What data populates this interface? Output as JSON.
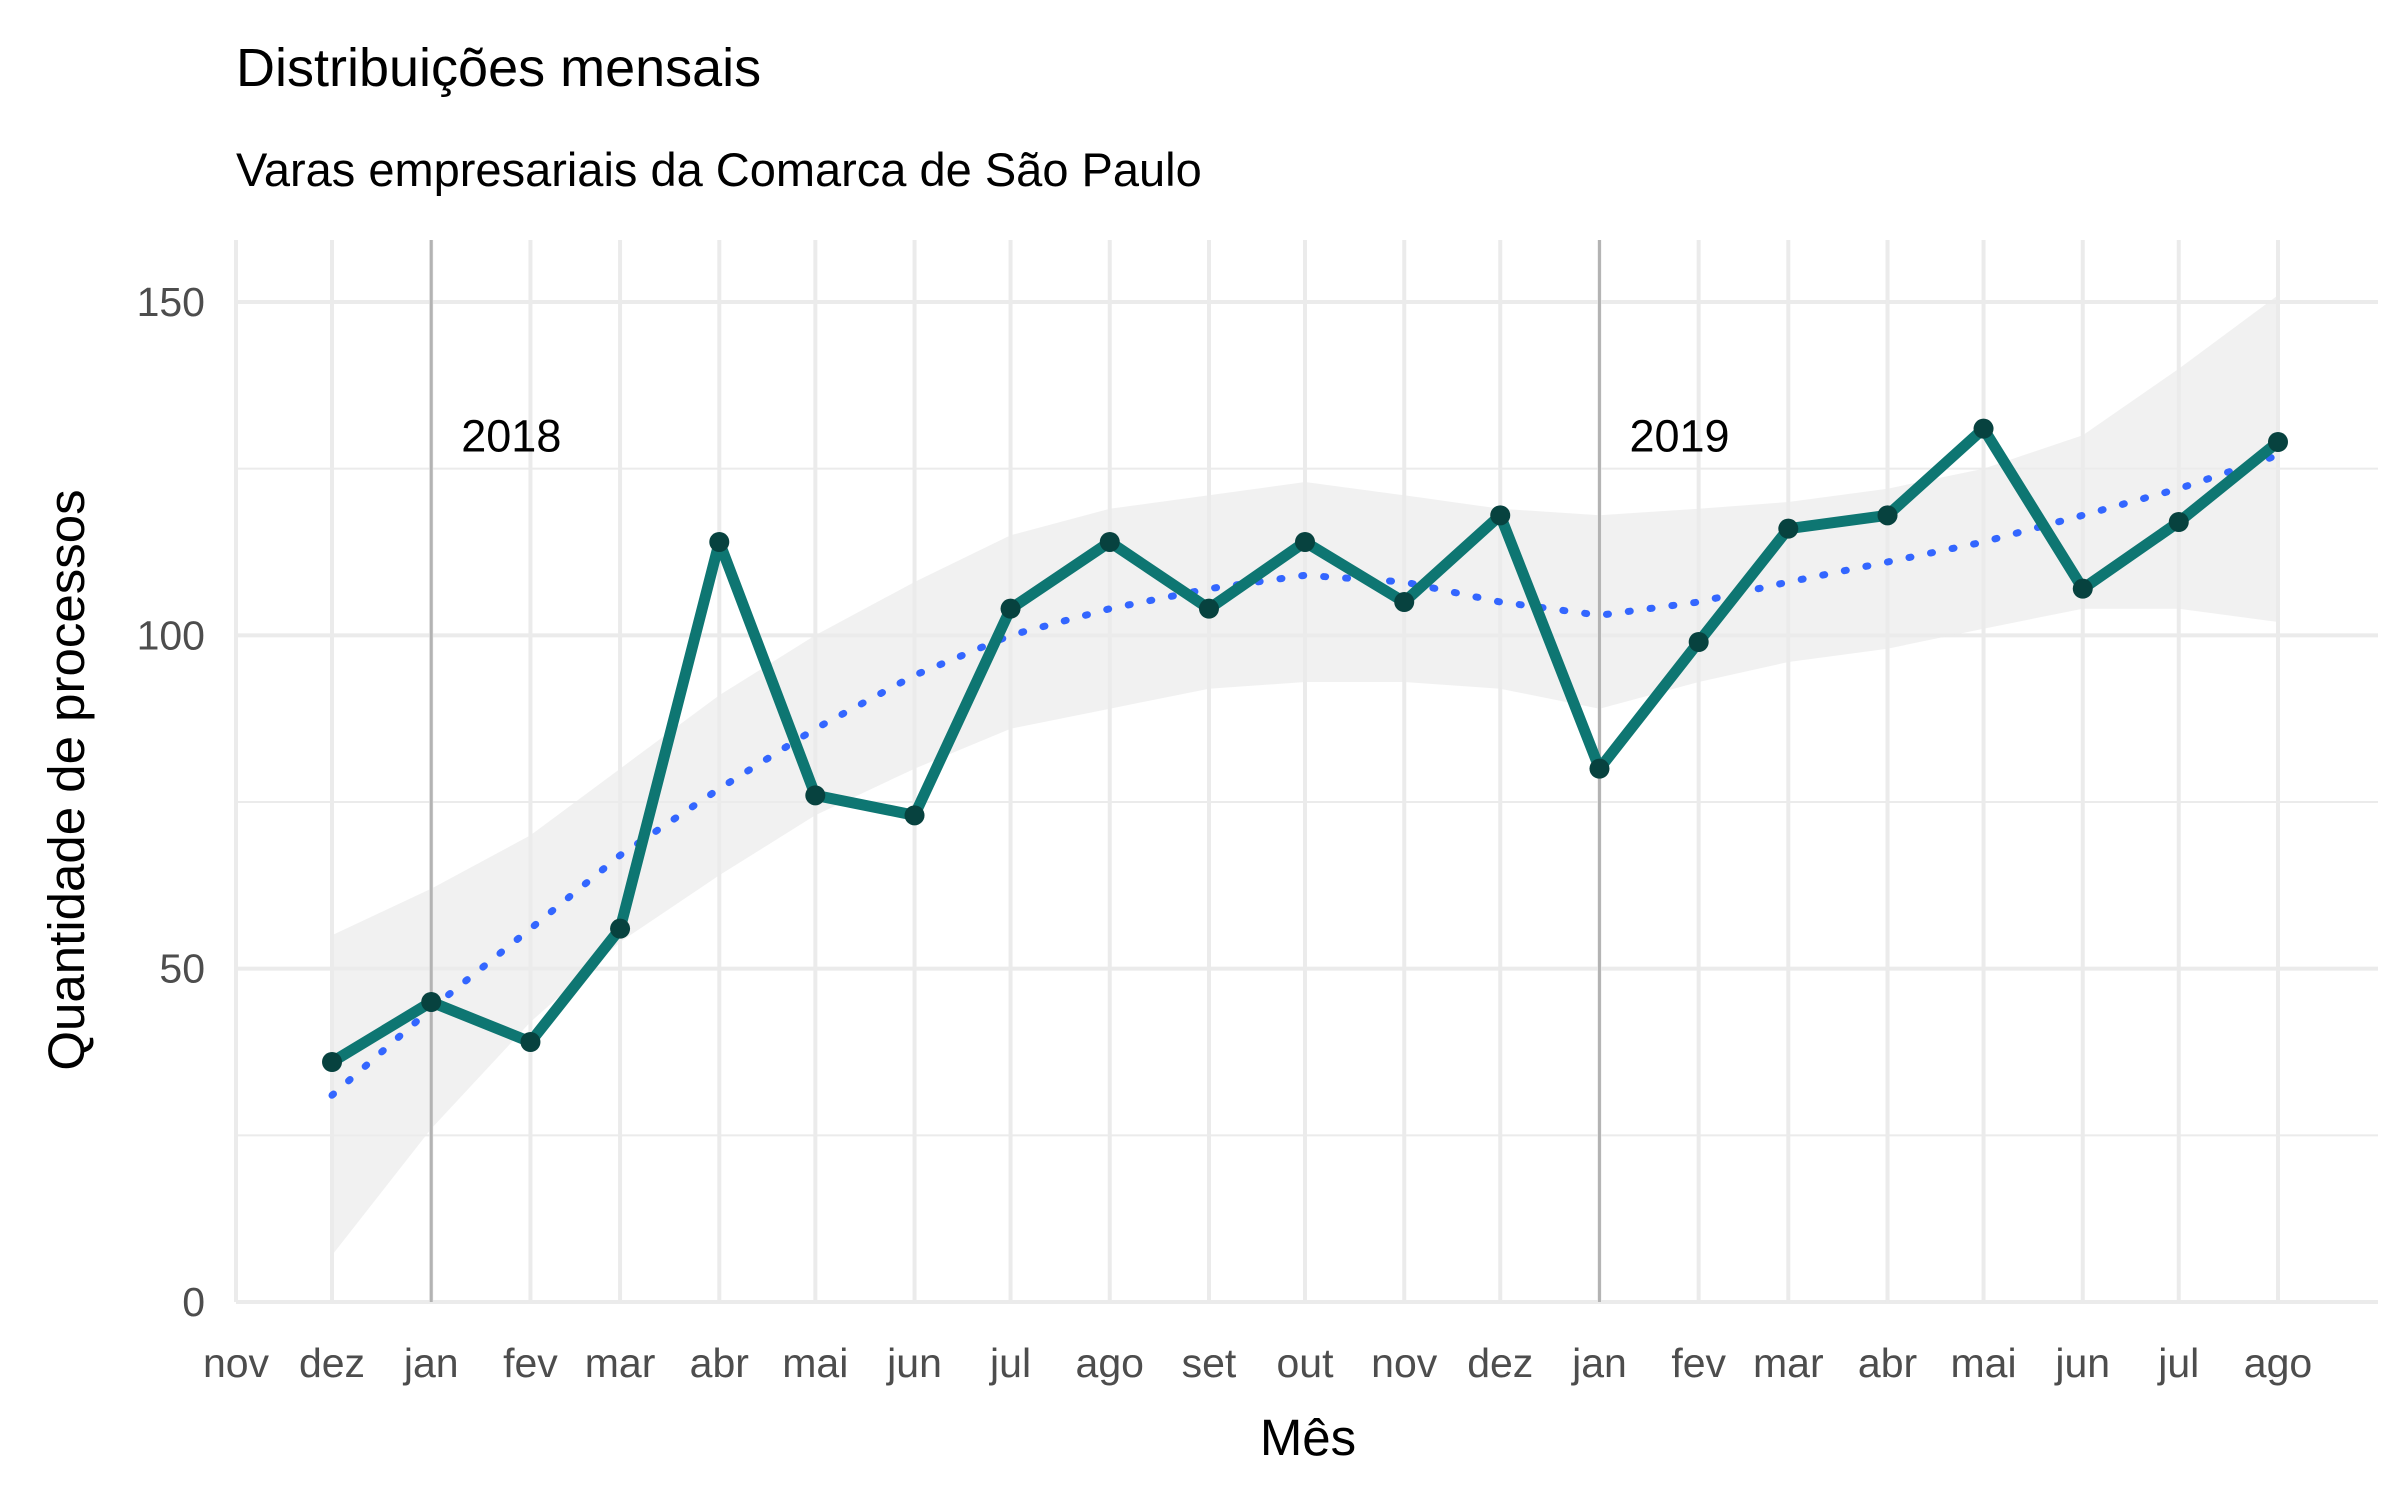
{
  "chart_data": {
    "type": "line",
    "title": "Distribuições mensais",
    "subtitle": "Varas empresariais da Comarca de São Paulo",
    "xlabel": "Mês",
    "ylabel": "Quantidade de processos",
    "x_ticks": [
      "nov",
      "dez",
      "jan",
      "fev",
      "mar",
      "abr",
      "mai",
      "jun",
      "jul",
      "ago",
      "set",
      "out",
      "nov",
      "dez",
      "jan",
      "fev",
      "mar",
      "abr",
      "mai",
      "jun",
      "jul",
      "ago"
    ],
    "x_tick_dates": [
      "2017-11-01",
      "2017-12-01",
      "2018-01-01",
      "2018-02-01",
      "2018-03-01",
      "2018-04-01",
      "2018-05-01",
      "2018-06-01",
      "2018-07-01",
      "2018-08-01",
      "2018-09-01",
      "2018-10-01",
      "2018-11-01",
      "2018-12-01",
      "2019-01-01",
      "2019-02-01",
      "2019-03-01",
      "2019-04-01",
      "2019-05-01",
      "2019-06-01",
      "2019-07-01",
      "2019-08-01"
    ],
    "y_ticks": [
      0,
      50,
      100,
      150
    ],
    "ylim": [
      0,
      160
    ],
    "grid": true,
    "series": [
      {
        "x": [
          "2017-12-01",
          "2018-01-01",
          "2018-02-01",
          "2018-03-01",
          "2018-04-01",
          "2018-05-01",
          "2018-06-01",
          "2018-07-01",
          "2018-08-01",
          "2018-09-01",
          "2018-10-01",
          "2018-11-01",
          "2018-12-01",
          "2019-01-01",
          "2019-02-01",
          "2019-03-01",
          "2019-04-01",
          "2019-05-01",
          "2019-06-01",
          "2019-07-01",
          "2019-08-01"
        ],
        "values": [
          36,
          45,
          39,
          56,
          114,
          76,
          73,
          104,
          114,
          104,
          114,
          105,
          118,
          80,
          99,
          116,
          118,
          131,
          107,
          117,
          129
        ],
        "color": "#0e7672"
      }
    ],
    "trend": {
      "style": "dotted",
      "color": "#3366ff",
      "x": [
        "2017-12-01",
        "2018-01-01",
        "2018-02-01",
        "2018-03-01",
        "2018-04-01",
        "2018-05-01",
        "2018-06-01",
        "2018-07-01",
        "2018-08-01",
        "2018-09-01",
        "2018-10-01",
        "2018-11-01",
        "2018-12-01",
        "2019-01-01",
        "2019-02-01",
        "2019-03-01",
        "2019-04-01",
        "2019-05-01",
        "2019-06-01",
        "2019-07-01",
        "2019-08-01"
      ],
      "values": [
        31,
        44,
        56,
        67,
        77,
        86,
        94,
        100,
        104,
        107,
        109,
        108,
        105,
        103,
        105,
        108,
        111,
        114,
        118,
        122,
        127
      ],
      "band_lower": [
        7,
        26,
        42,
        54,
        64,
        73,
        80,
        86,
        89,
        92,
        93,
        93,
        92,
        89,
        93,
        96,
        98,
        101,
        104,
        104,
        102
      ],
      "band_upper": [
        55,
        62,
        70,
        80,
        91,
        100,
        108,
        115,
        119,
        121,
        123,
        121,
        119,
        118,
        119,
        120,
        122,
        125,
        130,
        140,
        151
      ]
    },
    "year_markers": [
      {
        "x": "2018-01-01",
        "label": "2018"
      },
      {
        "x": "2019-01-01",
        "label": "2019"
      }
    ],
    "year_label_y": 130,
    "colors": {
      "line": "#0e7672",
      "point": "#07423f",
      "trend": "#3366ff",
      "band": "#ebebeb",
      "grid": "#ebebeb",
      "marker": "#b3b3b3"
    }
  }
}
